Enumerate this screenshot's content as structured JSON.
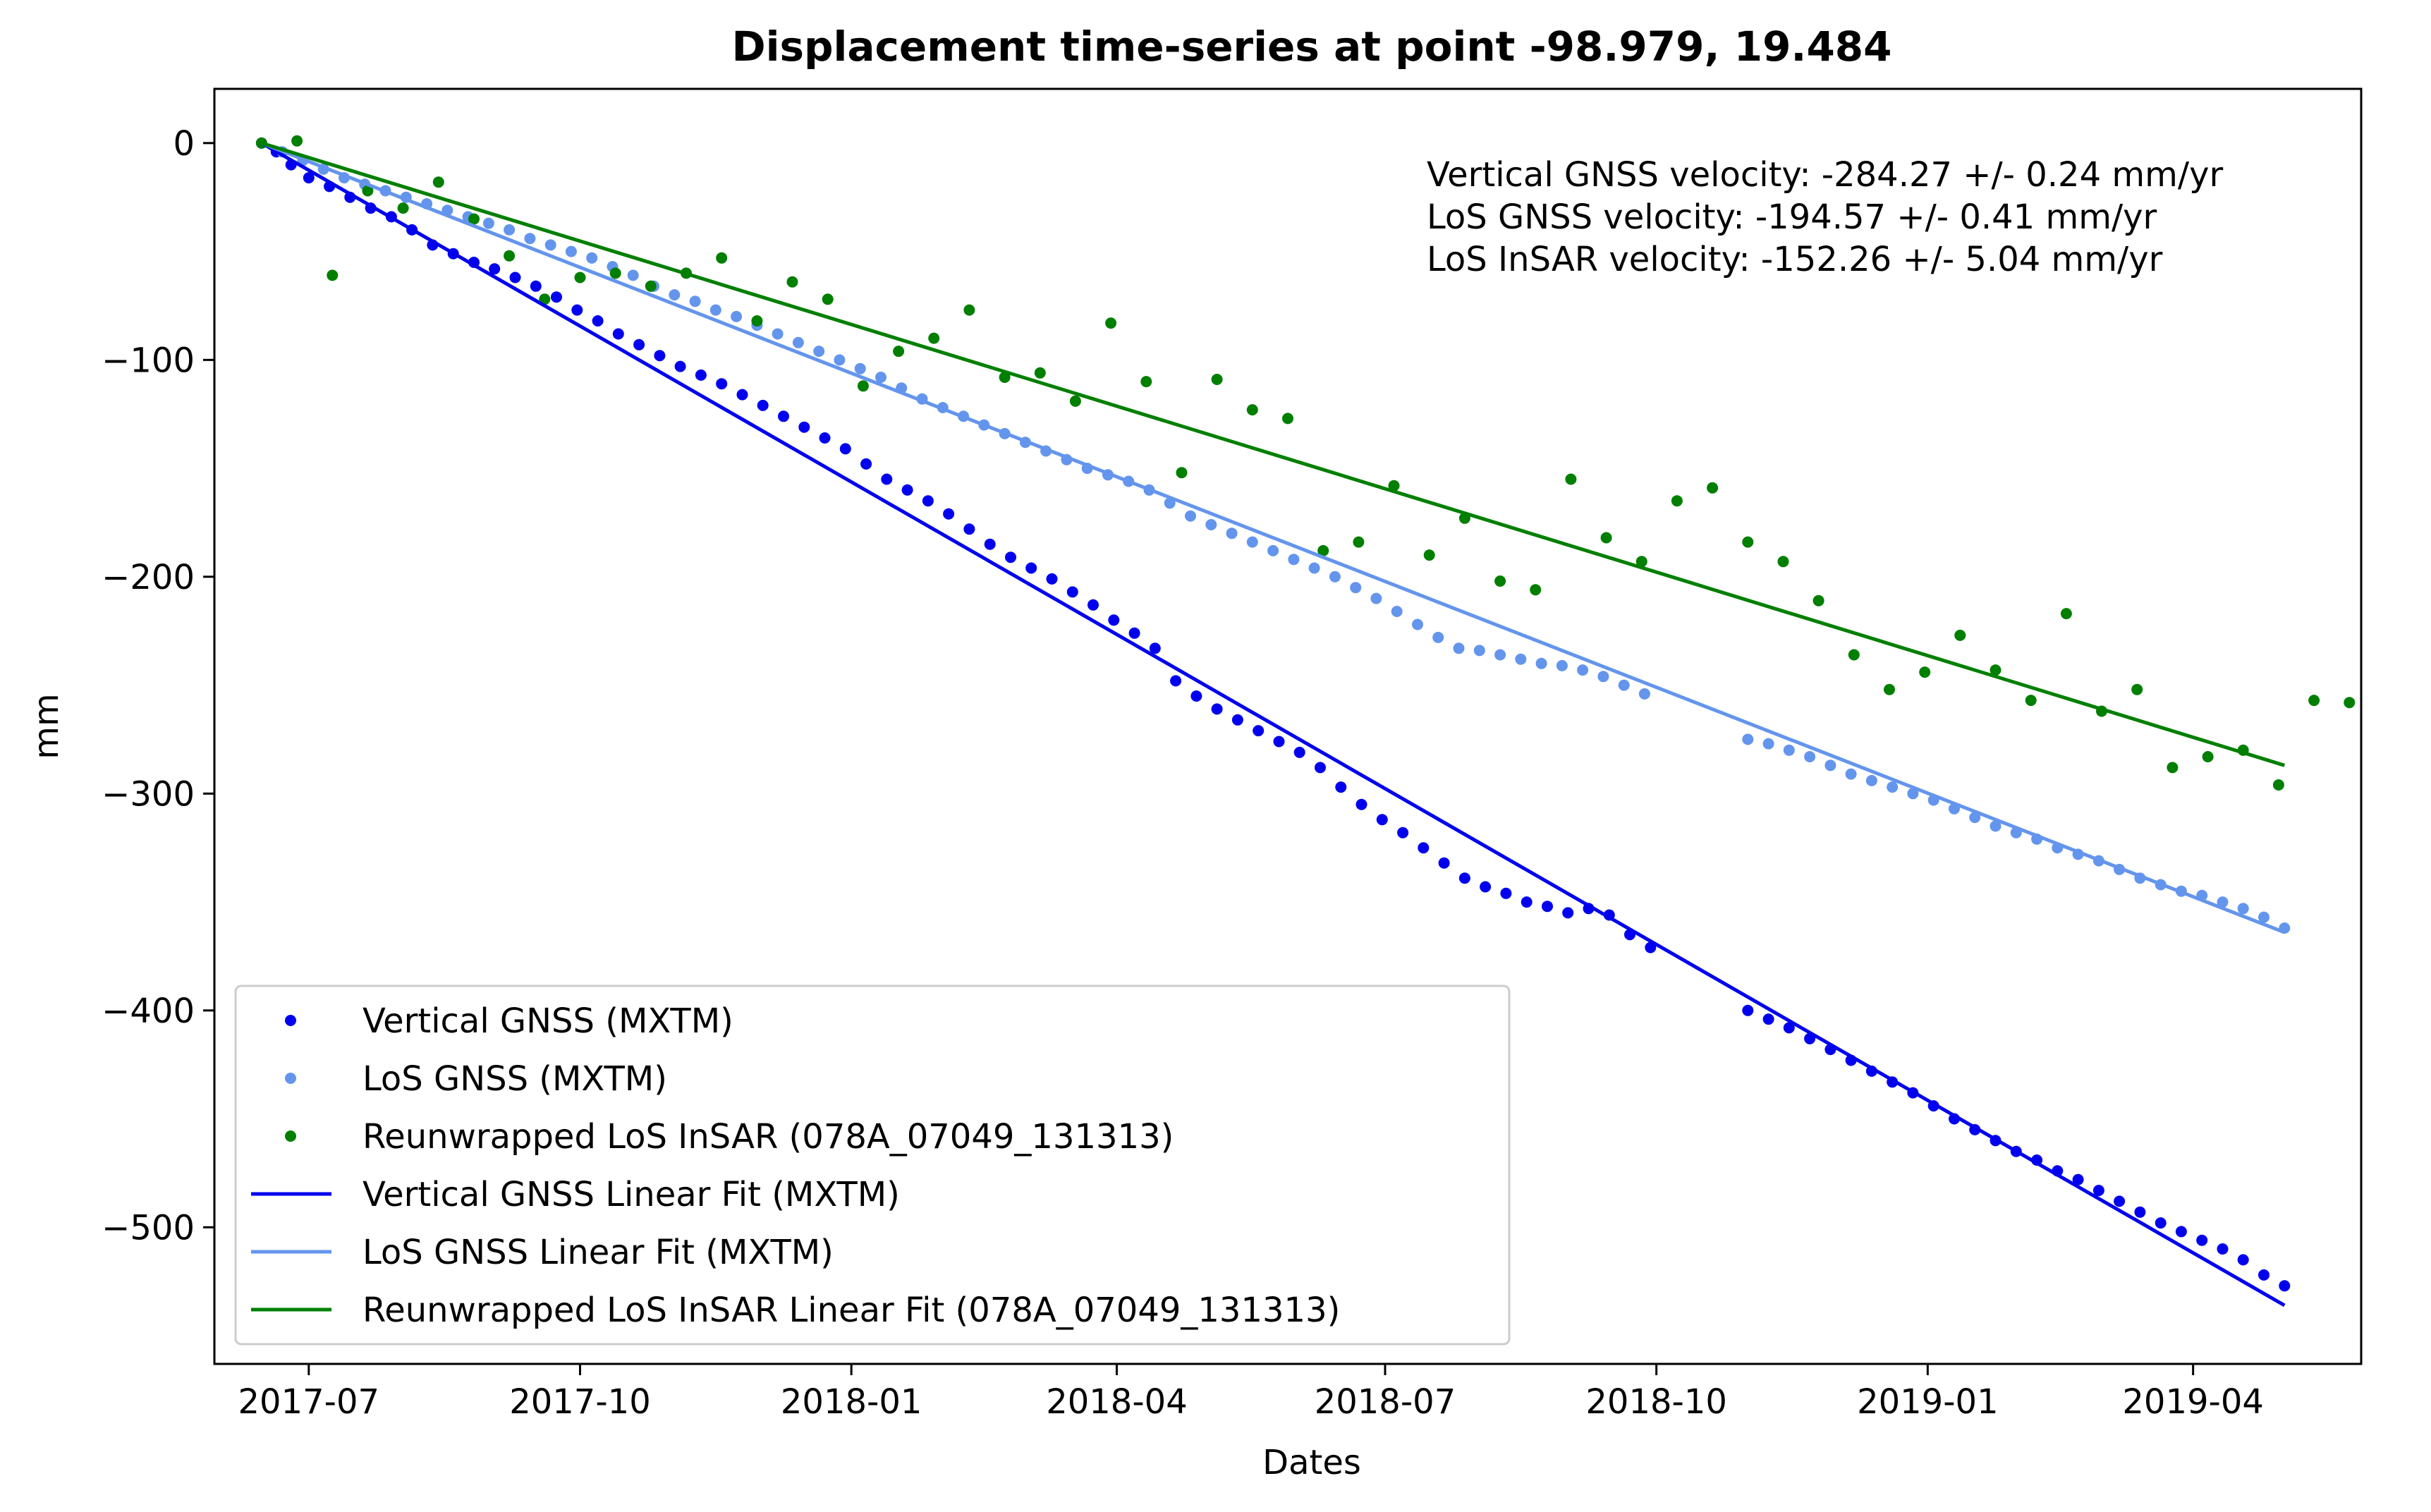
{
  "chart_data": {
    "type": "scatter",
    "title": "Displacement time-series at point -98.979, 19.484",
    "xlabel": "Dates",
    "ylabel": "mm",
    "x_type": "date",
    "xlim": [
      "2017-05-30",
      "2019-05-28"
    ],
    "ylim": [
      -563,
      25
    ],
    "x_ticks": [
      "2017-07-01",
      "2017-10-01",
      "2018-01-01",
      "2018-04-01",
      "2018-07-01",
      "2018-10-01",
      "2019-01-01",
      "2019-04-01"
    ],
    "x_tick_labels": [
      "2017-07",
      "2017-10",
      "2018-01",
      "2018-04",
      "2018-07",
      "2018-10",
      "2019-01",
      "2019-04"
    ],
    "y_ticks": [
      0,
      -100,
      -200,
      -300,
      -400,
      -500
    ],
    "y_tick_labels": [
      "0",
      "−100",
      "−200",
      "−300",
      "−400",
      "−500"
    ],
    "grid": false,
    "legend_position": "lower-left",
    "annotations": [
      "Vertical GNSS velocity: -284.27 +/- 0.24 mm/yr",
      "LoS GNSS velocity: -194.57 +/- 0.41 mm/yr",
      "LoS InSAR velocity: -152.26 +/- 5.04 mm/yr"
    ],
    "series": [
      {
        "name": "Vertical GNSS (MXTM)",
        "kind": "scatter",
        "color": "#0000ee",
        "points": [
          [
            "2017-06-15",
            0
          ],
          [
            "2017-06-20",
            -4
          ],
          [
            "2017-06-25",
            -10
          ],
          [
            "2017-07-01",
            -16
          ],
          [
            "2017-07-08",
            -20
          ],
          [
            "2017-07-15",
            -25
          ],
          [
            "2017-07-22",
            -30
          ],
          [
            "2017-07-29",
            -34
          ],
          [
            "2017-08-05",
            -40
          ],
          [
            "2017-08-12",
            -47
          ],
          [
            "2017-08-19",
            -51
          ],
          [
            "2017-08-26",
            -55
          ],
          [
            "2017-09-02",
            -58
          ],
          [
            "2017-09-09",
            -62
          ],
          [
            "2017-09-16",
            -66
          ],
          [
            "2017-09-23",
            -71
          ],
          [
            "2017-09-30",
            -77
          ],
          [
            "2017-10-07",
            -82
          ],
          [
            "2017-10-14",
            -88
          ],
          [
            "2017-10-21",
            -93
          ],
          [
            "2017-10-28",
            -98
          ],
          [
            "2017-11-04",
            -103
          ],
          [
            "2017-11-11",
            -107
          ],
          [
            "2017-11-18",
            -111
          ],
          [
            "2017-11-25",
            -116
          ],
          [
            "2017-12-02",
            -121
          ],
          [
            "2017-12-09",
            -126
          ],
          [
            "2017-12-16",
            -131
          ],
          [
            "2017-12-23",
            -136
          ],
          [
            "2017-12-30",
            -141
          ],
          [
            "2018-01-06",
            -148
          ],
          [
            "2018-01-13",
            -155
          ],
          [
            "2018-01-20",
            -160
          ],
          [
            "2018-01-27",
            -165
          ],
          [
            "2018-02-03",
            -171
          ],
          [
            "2018-02-10",
            -178
          ],
          [
            "2018-02-17",
            -185
          ],
          [
            "2018-02-24",
            -191
          ],
          [
            "2018-03-03",
            -196
          ],
          [
            "2018-03-10",
            -201
          ],
          [
            "2018-03-17",
            -207
          ],
          [
            "2018-03-24",
            -213
          ],
          [
            "2018-03-31",
            -220
          ],
          [
            "2018-04-07",
            -226
          ],
          [
            "2018-04-14",
            -233
          ],
          [
            "2018-04-21",
            -248
          ],
          [
            "2018-04-28",
            -255
          ],
          [
            "2018-05-05",
            -261
          ],
          [
            "2018-05-12",
            -266
          ],
          [
            "2018-05-19",
            -271
          ],
          [
            "2018-05-26",
            -276
          ],
          [
            "2018-06-02",
            -281
          ],
          [
            "2018-06-09",
            -288
          ],
          [
            "2018-06-16",
            -297
          ],
          [
            "2018-06-23",
            -305
          ],
          [
            "2018-06-30",
            -312
          ],
          [
            "2018-07-07",
            -318
          ],
          [
            "2018-07-14",
            -325
          ],
          [
            "2018-07-21",
            -332
          ],
          [
            "2018-07-28",
            -339
          ],
          [
            "2018-08-04",
            -343
          ],
          [
            "2018-08-11",
            -346
          ],
          [
            "2018-08-18",
            -350
          ],
          [
            "2018-08-25",
            -352
          ],
          [
            "2018-09-01",
            -355
          ],
          [
            "2018-09-08",
            -353
          ],
          [
            "2018-09-15",
            -356
          ],
          [
            "2018-09-22",
            -365
          ],
          [
            "2018-09-29",
            -371
          ],
          [
            "2018-11-01",
            -400
          ],
          [
            "2018-11-08",
            -404
          ],
          [
            "2018-11-15",
            -408
          ],
          [
            "2018-11-22",
            -413
          ],
          [
            "2018-11-29",
            -418
          ],
          [
            "2018-12-06",
            -423
          ],
          [
            "2018-12-13",
            -428
          ],
          [
            "2018-12-20",
            -433
          ],
          [
            "2018-12-27",
            -438
          ],
          [
            "2019-01-03",
            -444
          ],
          [
            "2019-01-10",
            -450
          ],
          [
            "2019-01-17",
            -455
          ],
          [
            "2019-01-24",
            -460
          ],
          [
            "2019-01-31",
            -465
          ],
          [
            "2019-02-07",
            -469
          ],
          [
            "2019-02-14",
            -474
          ],
          [
            "2019-02-21",
            -478
          ],
          [
            "2019-02-28",
            -483
          ],
          [
            "2019-03-07",
            -488
          ],
          [
            "2019-03-14",
            -493
          ],
          [
            "2019-03-21",
            -498
          ],
          [
            "2019-03-28",
            -502
          ],
          [
            "2019-04-04",
            -506
          ],
          [
            "2019-04-11",
            -510
          ],
          [
            "2019-04-18",
            -515
          ],
          [
            "2019-04-25",
            -522
          ],
          [
            "2019-05-02",
            -527
          ]
        ]
      },
      {
        "name": "LoS GNSS (MXTM)",
        "kind": "scatter",
        "color": "#6495ed",
        "points": [
          [
            "2017-06-15",
            0
          ],
          [
            "2017-06-22",
            -4
          ],
          [
            "2017-06-29",
            -8
          ],
          [
            "2017-07-06",
            -12
          ],
          [
            "2017-07-13",
            -16
          ],
          [
            "2017-07-20",
            -19
          ],
          [
            "2017-07-27",
            -22
          ],
          [
            "2017-08-03",
            -25
          ],
          [
            "2017-08-10",
            -28
          ],
          [
            "2017-08-17",
            -31
          ],
          [
            "2017-08-24",
            -34
          ],
          [
            "2017-08-31",
            -37
          ],
          [
            "2017-09-07",
            -40
          ],
          [
            "2017-09-14",
            -44
          ],
          [
            "2017-09-21",
            -47
          ],
          [
            "2017-09-28",
            -50
          ],
          [
            "2017-10-05",
            -53
          ],
          [
            "2017-10-12",
            -57
          ],
          [
            "2017-10-19",
            -61
          ],
          [
            "2017-10-26",
            -66
          ],
          [
            "2017-11-02",
            -70
          ],
          [
            "2017-11-09",
            -73
          ],
          [
            "2017-11-16",
            -77
          ],
          [
            "2017-11-23",
            -80
          ],
          [
            "2017-11-30",
            -84
          ],
          [
            "2017-12-07",
            -88
          ],
          [
            "2017-12-14",
            -92
          ],
          [
            "2017-12-21",
            -96
          ],
          [
            "2017-12-28",
            -100
          ],
          [
            "2018-01-04",
            -104
          ],
          [
            "2018-01-11",
            -108
          ],
          [
            "2018-01-18",
            -113
          ],
          [
            "2018-01-25",
            -118
          ],
          [
            "2018-02-01",
            -122
          ],
          [
            "2018-02-08",
            -126
          ],
          [
            "2018-02-15",
            -130
          ],
          [
            "2018-02-22",
            -134
          ],
          [
            "2018-03-01",
            -138
          ],
          [
            "2018-03-08",
            -142
          ],
          [
            "2018-03-15",
            -146
          ],
          [
            "2018-03-22",
            -150
          ],
          [
            "2018-03-29",
            -153
          ],
          [
            "2018-04-05",
            -156
          ],
          [
            "2018-04-12",
            -160
          ],
          [
            "2018-04-19",
            -166
          ],
          [
            "2018-04-26",
            -172
          ],
          [
            "2018-05-03",
            -176
          ],
          [
            "2018-05-10",
            -180
          ],
          [
            "2018-05-17",
            -184
          ],
          [
            "2018-05-24",
            -188
          ],
          [
            "2018-05-31",
            -192
          ],
          [
            "2018-06-07",
            -196
          ],
          [
            "2018-06-14",
            -200
          ],
          [
            "2018-06-21",
            -205
          ],
          [
            "2018-06-28",
            -210
          ],
          [
            "2018-07-05",
            -216
          ],
          [
            "2018-07-12",
            -222
          ],
          [
            "2018-07-19",
            -228
          ],
          [
            "2018-07-26",
            -233
          ],
          [
            "2018-08-02",
            -234
          ],
          [
            "2018-08-09",
            -236
          ],
          [
            "2018-08-16",
            -238
          ],
          [
            "2018-08-23",
            -240
          ],
          [
            "2018-08-30",
            -241
          ],
          [
            "2018-09-06",
            -243
          ],
          [
            "2018-09-13",
            -246
          ],
          [
            "2018-09-20",
            -250
          ],
          [
            "2018-09-27",
            -254
          ],
          [
            "2018-11-01",
            -275
          ],
          [
            "2018-11-08",
            -277
          ],
          [
            "2018-11-15",
            -280
          ],
          [
            "2018-11-22",
            -283
          ],
          [
            "2018-11-29",
            -287
          ],
          [
            "2018-12-06",
            -291
          ],
          [
            "2018-12-13",
            -294
          ],
          [
            "2018-12-20",
            -297
          ],
          [
            "2018-12-27",
            -300
          ],
          [
            "2019-01-03",
            -303
          ],
          [
            "2019-01-10",
            -307
          ],
          [
            "2019-01-17",
            -311
          ],
          [
            "2019-01-24",
            -315
          ],
          [
            "2019-01-31",
            -318
          ],
          [
            "2019-02-07",
            -321
          ],
          [
            "2019-02-14",
            -325
          ],
          [
            "2019-02-21",
            -328
          ],
          [
            "2019-02-28",
            -331
          ],
          [
            "2019-03-07",
            -335
          ],
          [
            "2019-03-14",
            -339
          ],
          [
            "2019-03-21",
            -342
          ],
          [
            "2019-03-28",
            -345
          ],
          [
            "2019-04-04",
            -347
          ],
          [
            "2019-04-11",
            -350
          ],
          [
            "2019-04-18",
            -353
          ],
          [
            "2019-04-25",
            -357
          ],
          [
            "2019-05-02",
            -362
          ]
        ]
      },
      {
        "name": "Reunwrapped LoS InSAR (078A_07049_131313)",
        "kind": "scatter",
        "color": "#007f00",
        "points": [
          [
            "2017-06-15",
            0
          ],
          [
            "2017-06-27",
            1
          ],
          [
            "2017-07-09",
            -61
          ],
          [
            "2017-07-21",
            -22
          ],
          [
            "2017-08-02",
            -30
          ],
          [
            "2017-08-14",
            -18
          ],
          [
            "2017-08-26",
            -35
          ],
          [
            "2017-09-07",
            -52
          ],
          [
            "2017-09-19",
            -72
          ],
          [
            "2017-10-01",
            -62
          ],
          [
            "2017-10-13",
            -60
          ],
          [
            "2017-10-25",
            -66
          ],
          [
            "2017-11-06",
            -60
          ],
          [
            "2017-11-18",
            -53
          ],
          [
            "2017-11-30",
            -82
          ],
          [
            "2017-12-12",
            -64
          ],
          [
            "2017-12-24",
            -72
          ],
          [
            "2018-01-05",
            -112
          ],
          [
            "2018-01-17",
            -96
          ],
          [
            "2018-01-29",
            -90
          ],
          [
            "2018-02-10",
            -77
          ],
          [
            "2018-02-22",
            -108
          ],
          [
            "2018-03-06",
            -106
          ],
          [
            "2018-03-18",
            -119
          ],
          [
            "2018-03-30",
            -83
          ],
          [
            "2018-04-11",
            -110
          ],
          [
            "2018-04-23",
            -152
          ],
          [
            "2018-05-05",
            -109
          ],
          [
            "2018-05-17",
            -123
          ],
          [
            "2018-05-29",
            -127
          ],
          [
            "2018-06-10",
            -188
          ],
          [
            "2018-06-22",
            -184
          ],
          [
            "2018-07-04",
            -158
          ],
          [
            "2018-07-16",
            -190
          ],
          [
            "2018-07-28",
            -173
          ],
          [
            "2018-08-09",
            -202
          ],
          [
            "2018-08-21",
            -206
          ],
          [
            "2018-09-02",
            -155
          ],
          [
            "2018-09-14",
            -182
          ],
          [
            "2018-09-26",
            -193
          ],
          [
            "2018-10-08",
            -165
          ],
          [
            "2018-10-20",
            -159
          ],
          [
            "2018-11-01",
            -184
          ],
          [
            "2018-11-13",
            -193
          ],
          [
            "2018-11-25",
            -211
          ],
          [
            "2018-12-07",
            -236
          ],
          [
            "2018-12-19",
            -252
          ],
          [
            "2018-12-31",
            -244
          ],
          [
            "2019-01-12",
            -227
          ],
          [
            "2019-01-24",
            -243
          ],
          [
            "2019-02-05",
            -257
          ],
          [
            "2019-02-17",
            -217
          ],
          [
            "2019-03-01",
            -262
          ],
          [
            "2019-03-13",
            -252
          ],
          [
            "2019-03-25",
            -288
          ],
          [
            "2019-04-06",
            -283
          ],
          [
            "2019-04-18",
            -280
          ],
          [
            "2019-04-30",
            -296
          ],
          [
            "2019-05-12",
            -257
          ],
          [
            "2019-05-24",
            -258
          ]
        ]
      },
      {
        "name": "Vertical GNSS Linear Fit (MXTM)",
        "kind": "line",
        "color": "#0000ee",
        "points": [
          [
            "2017-06-15",
            0
          ],
          [
            "2019-05-02",
            -536
          ]
        ]
      },
      {
        "name": "LoS GNSS Linear Fit (MXTM)",
        "kind": "line",
        "color": "#6495ed",
        "points": [
          [
            "2017-06-15",
            0
          ],
          [
            "2019-05-02",
            -364
          ]
        ]
      },
      {
        "name": "Reunwrapped LoS InSAR Linear Fit (078A_07049_131313)",
        "kind": "line",
        "color": "#007f00",
        "points": [
          [
            "2017-06-15",
            0
          ],
          [
            "2019-05-02",
            -287
          ]
        ]
      }
    ]
  }
}
